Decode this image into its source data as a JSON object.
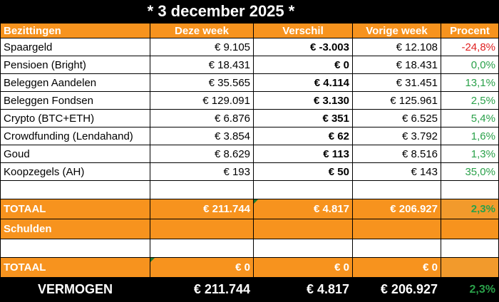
{
  "title": "* 3 december 2025 *",
  "header": {
    "col1": "Bezittingen",
    "col2": "Deze week",
    "col3": "Verschil",
    "col4": "Vorige week",
    "col5": "Procent"
  },
  "rows": [
    {
      "name": "Spaargeld",
      "this_week": "€ 9.105",
      "diff": "€ -3.003",
      "last_week": "€ 12.108",
      "pct": "-24,8%"
    },
    {
      "name": "Pensioen (Bright)",
      "this_week": "€ 18.431",
      "diff": "€ 0",
      "last_week": "€ 18.431",
      "pct": "0,0%"
    },
    {
      "name": "Beleggen Aandelen",
      "this_week": "€ 35.565",
      "diff": "€ 4.114",
      "last_week": "€ 31.451",
      "pct": "13,1%"
    },
    {
      "name": "Beleggen Fondsen",
      "this_week": "€ 129.091",
      "diff": "€ 3.130",
      "last_week": "€ 125.961",
      "pct": "2,5%"
    },
    {
      "name": "Crypto (BTC+ETH)",
      "this_week": "€ 6.876",
      "diff": "€ 351",
      "last_week": "€ 6.525",
      "pct": "5,4%"
    },
    {
      "name": "Crowdfunding (Lendahand)",
      "this_week": "€ 3.854",
      "diff": "€ 62",
      "last_week": "€ 3.792",
      "pct": "1,6%"
    },
    {
      "name": "Goud",
      "this_week": "€ 8.629",
      "diff": "€ 113",
      "last_week": "€ 8.516",
      "pct": "1,3%"
    },
    {
      "name": "Koopzegels (AH)",
      "this_week": "€ 193",
      "diff": "€ 50",
      "last_week": "€ 143",
      "pct": "35,0%"
    }
  ],
  "totaal_assets": {
    "label": "TOTAAL",
    "this_week": "€ 211.744",
    "diff": "€ 4.817",
    "last_week": "€ 206.927",
    "pct": "2,3%"
  },
  "schulden": {
    "label": "Schulden"
  },
  "totaal_debts": {
    "label": "TOTAAL",
    "this_week": "€ 0",
    "diff": "€ 0",
    "last_week": "€ 0"
  },
  "vermogen": {
    "label": "VERMOGEN",
    "this_week": "€ 211.744",
    "diff": "€ 4.817",
    "last_week": "€ 206.927",
    "pct": "2,3%"
  },
  "colors": {
    "header_orange": "#f7931e",
    "positive_green": "#2aa14a",
    "negative_red": "#e02020",
    "background": "#000000"
  }
}
